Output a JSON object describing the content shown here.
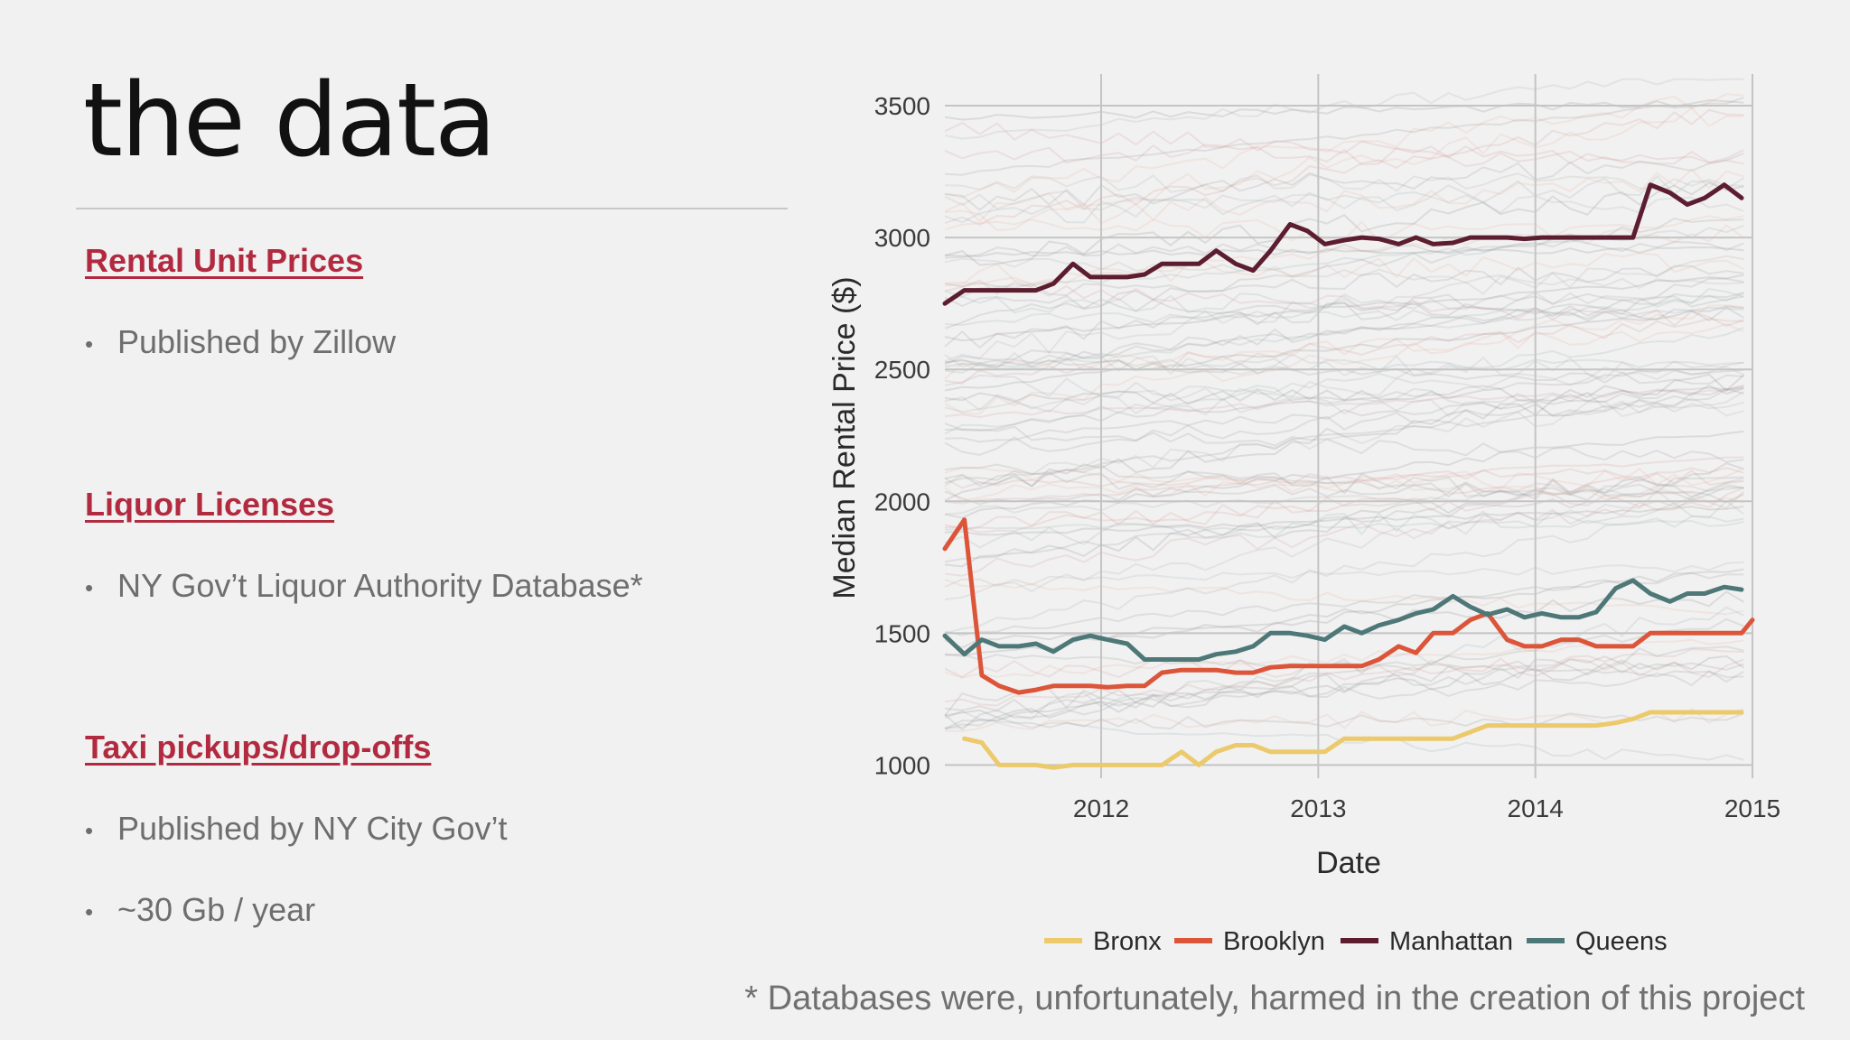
{
  "slide": {
    "title": "the data",
    "sections": [
      {
        "heading": "Rental Unit Prices",
        "bullets": [
          "Published by Zillow"
        ]
      },
      {
        "heading": "Liquor Licenses",
        "bullets": [
          "NY Gov’t Liquor Authority Database*"
        ]
      },
      {
        "heading": "Taxi pickups/drop-offs",
        "bullets": [
          "Published by NY City Gov’t",
          "~30 Gb / year"
        ]
      }
    ],
    "bullet_glyph": "•",
    "footnote": "* Databases were, unfortunately, harmed in the creation of this project"
  },
  "chart_data": {
    "type": "line",
    "title": "",
    "xlabel": "Date",
    "ylabel": "Median Rental Price ($)",
    "xlim": [
      2011.28,
      2015.0
    ],
    "ylim": [
      950,
      3620
    ],
    "xticks": [
      2012,
      2013,
      2014,
      2015
    ],
    "yticks": [
      1000,
      1500,
      2000,
      2500,
      3000,
      3500
    ],
    "legend_position": "bottom",
    "background_series_note": "many faint neighborhood-level lines behind the borough medians",
    "series": [
      {
        "name": "Bronx",
        "color": "#ecc96b",
        "points": [
          [
            2011.37,
            1100
          ],
          [
            2011.45,
            1085
          ],
          [
            2011.53,
            1000
          ],
          [
            2011.62,
            1000
          ],
          [
            2011.7,
            1000
          ],
          [
            2011.78,
            990
          ],
          [
            2011.87,
            1000
          ],
          [
            2011.95,
            1000
          ],
          [
            2012.03,
            1000
          ],
          [
            2012.12,
            1000
          ],
          [
            2012.2,
            1000
          ],
          [
            2012.28,
            1000
          ],
          [
            2012.37,
            1050
          ],
          [
            2012.45,
            1000
          ],
          [
            2012.53,
            1050
          ],
          [
            2012.62,
            1075
          ],
          [
            2012.7,
            1075
          ],
          [
            2012.78,
            1050
          ],
          [
            2012.87,
            1050
          ],
          [
            2012.95,
            1050
          ],
          [
            2013.03,
            1050
          ],
          [
            2013.12,
            1100
          ],
          [
            2013.2,
            1100
          ],
          [
            2013.28,
            1100
          ],
          [
            2013.37,
            1100
          ],
          [
            2013.45,
            1100
          ],
          [
            2013.53,
            1100
          ],
          [
            2013.62,
            1100
          ],
          [
            2013.7,
            1125
          ],
          [
            2013.78,
            1150
          ],
          [
            2013.87,
            1150
          ],
          [
            2013.95,
            1150
          ],
          [
            2014.03,
            1150
          ],
          [
            2014.12,
            1150
          ],
          [
            2014.2,
            1150
          ],
          [
            2014.28,
            1150
          ],
          [
            2014.37,
            1160
          ],
          [
            2014.45,
            1175
          ],
          [
            2014.53,
            1200
          ],
          [
            2014.62,
            1200
          ],
          [
            2014.7,
            1200
          ],
          [
            2014.78,
            1200
          ],
          [
            2014.87,
            1200
          ],
          [
            2014.95,
            1200
          ]
        ]
      },
      {
        "name": "Brooklyn",
        "color": "#dc5539",
        "points": [
          [
            2011.28,
            1820
          ],
          [
            2011.37,
            1930
          ],
          [
            2011.45,
            1340
          ],
          [
            2011.53,
            1300
          ],
          [
            2011.62,
            1275
          ],
          [
            2011.7,
            1285
          ],
          [
            2011.78,
            1300
          ],
          [
            2011.87,
            1300
          ],
          [
            2011.95,
            1300
          ],
          [
            2012.03,
            1295
          ],
          [
            2012.12,
            1300
          ],
          [
            2012.2,
            1300
          ],
          [
            2012.28,
            1350
          ],
          [
            2012.37,
            1360
          ],
          [
            2012.45,
            1360
          ],
          [
            2012.53,
            1360
          ],
          [
            2012.62,
            1350
          ],
          [
            2012.7,
            1350
          ],
          [
            2012.78,
            1370
          ],
          [
            2012.87,
            1375
          ],
          [
            2012.95,
            1375
          ],
          [
            2013.03,
            1375
          ],
          [
            2013.12,
            1375
          ],
          [
            2013.2,
            1375
          ],
          [
            2013.28,
            1400
          ],
          [
            2013.37,
            1450
          ],
          [
            2013.45,
            1425
          ],
          [
            2013.53,
            1500
          ],
          [
            2013.62,
            1500
          ],
          [
            2013.7,
            1550
          ],
          [
            2013.78,
            1575
          ],
          [
            2013.87,
            1475
          ],
          [
            2013.95,
            1450
          ],
          [
            2014.03,
            1450
          ],
          [
            2014.12,
            1475
          ],
          [
            2014.2,
            1475
          ],
          [
            2014.28,
            1450
          ],
          [
            2014.37,
            1450
          ],
          [
            2014.45,
            1450
          ],
          [
            2014.53,
            1500
          ],
          [
            2014.62,
            1500
          ],
          [
            2014.7,
            1500
          ],
          [
            2014.78,
            1500
          ],
          [
            2014.87,
            1500
          ],
          [
            2014.95,
            1500
          ],
          [
            2015.0,
            1550
          ]
        ]
      },
      {
        "name": "Manhattan",
        "color": "#5c1d30",
        "points": [
          [
            2011.28,
            2750
          ],
          [
            2011.37,
            2800
          ],
          [
            2011.45,
            2800
          ],
          [
            2011.53,
            2800
          ],
          [
            2011.62,
            2800
          ],
          [
            2011.7,
            2800
          ],
          [
            2011.78,
            2825
          ],
          [
            2011.87,
            2900
          ],
          [
            2011.95,
            2850
          ],
          [
            2012.03,
            2850
          ],
          [
            2012.12,
            2850
          ],
          [
            2012.2,
            2860
          ],
          [
            2012.28,
            2900
          ],
          [
            2012.37,
            2900
          ],
          [
            2012.45,
            2900
          ],
          [
            2012.53,
            2950
          ],
          [
            2012.62,
            2900
          ],
          [
            2012.7,
            2875
          ],
          [
            2012.78,
            2950
          ],
          [
            2012.87,
            3050
          ],
          [
            2012.95,
            3025
          ],
          [
            2013.03,
            2975
          ],
          [
            2013.12,
            2990
          ],
          [
            2013.2,
            3000
          ],
          [
            2013.28,
            2995
          ],
          [
            2013.37,
            2975
          ],
          [
            2013.45,
            3000
          ],
          [
            2013.53,
            2975
          ],
          [
            2013.62,
            2980
          ],
          [
            2013.7,
            3000
          ],
          [
            2013.78,
            3000
          ],
          [
            2013.87,
            3000
          ],
          [
            2013.95,
            2995
          ],
          [
            2014.03,
            3000
          ],
          [
            2014.12,
            3000
          ],
          [
            2014.2,
            3000
          ],
          [
            2014.28,
            3000
          ],
          [
            2014.37,
            3000
          ],
          [
            2014.45,
            3000
          ],
          [
            2014.53,
            3200
          ],
          [
            2014.62,
            3170
          ],
          [
            2014.7,
            3125
          ],
          [
            2014.78,
            3150
          ],
          [
            2014.87,
            3200
          ],
          [
            2014.95,
            3150
          ]
        ]
      },
      {
        "name": "Queens",
        "color": "#4d7877",
        "points": [
          [
            2011.28,
            1490
          ],
          [
            2011.37,
            1420
          ],
          [
            2011.45,
            1475
          ],
          [
            2011.53,
            1450
          ],
          [
            2011.62,
            1450
          ],
          [
            2011.7,
            1460
          ],
          [
            2011.78,
            1430
          ],
          [
            2011.87,
            1475
          ],
          [
            2011.95,
            1490
          ],
          [
            2012.03,
            1475
          ],
          [
            2012.12,
            1460
          ],
          [
            2012.2,
            1400
          ],
          [
            2012.28,
            1400
          ],
          [
            2012.37,
            1400
          ],
          [
            2012.45,
            1400
          ],
          [
            2012.53,
            1420
          ],
          [
            2012.62,
            1430
          ],
          [
            2012.7,
            1450
          ],
          [
            2012.78,
            1500
          ],
          [
            2012.87,
            1500
          ],
          [
            2012.95,
            1490
          ],
          [
            2013.03,
            1475
          ],
          [
            2013.12,
            1525
          ],
          [
            2013.2,
            1500
          ],
          [
            2013.28,
            1530
          ],
          [
            2013.37,
            1550
          ],
          [
            2013.45,
            1575
          ],
          [
            2013.53,
            1590
          ],
          [
            2013.62,
            1640
          ],
          [
            2013.7,
            1600
          ],
          [
            2013.78,
            1570
          ],
          [
            2013.87,
            1590
          ],
          [
            2013.95,
            1560
          ],
          [
            2014.03,
            1575
          ],
          [
            2014.12,
            1560
          ],
          [
            2014.2,
            1560
          ],
          [
            2014.28,
            1580
          ],
          [
            2014.37,
            1670
          ],
          [
            2014.45,
            1700
          ],
          [
            2014.53,
            1650
          ],
          [
            2014.62,
            1620
          ],
          [
            2014.7,
            1650
          ],
          [
            2014.78,
            1650
          ],
          [
            2014.87,
            1675
          ],
          [
            2014.95,
            1665
          ]
        ]
      }
    ]
  }
}
